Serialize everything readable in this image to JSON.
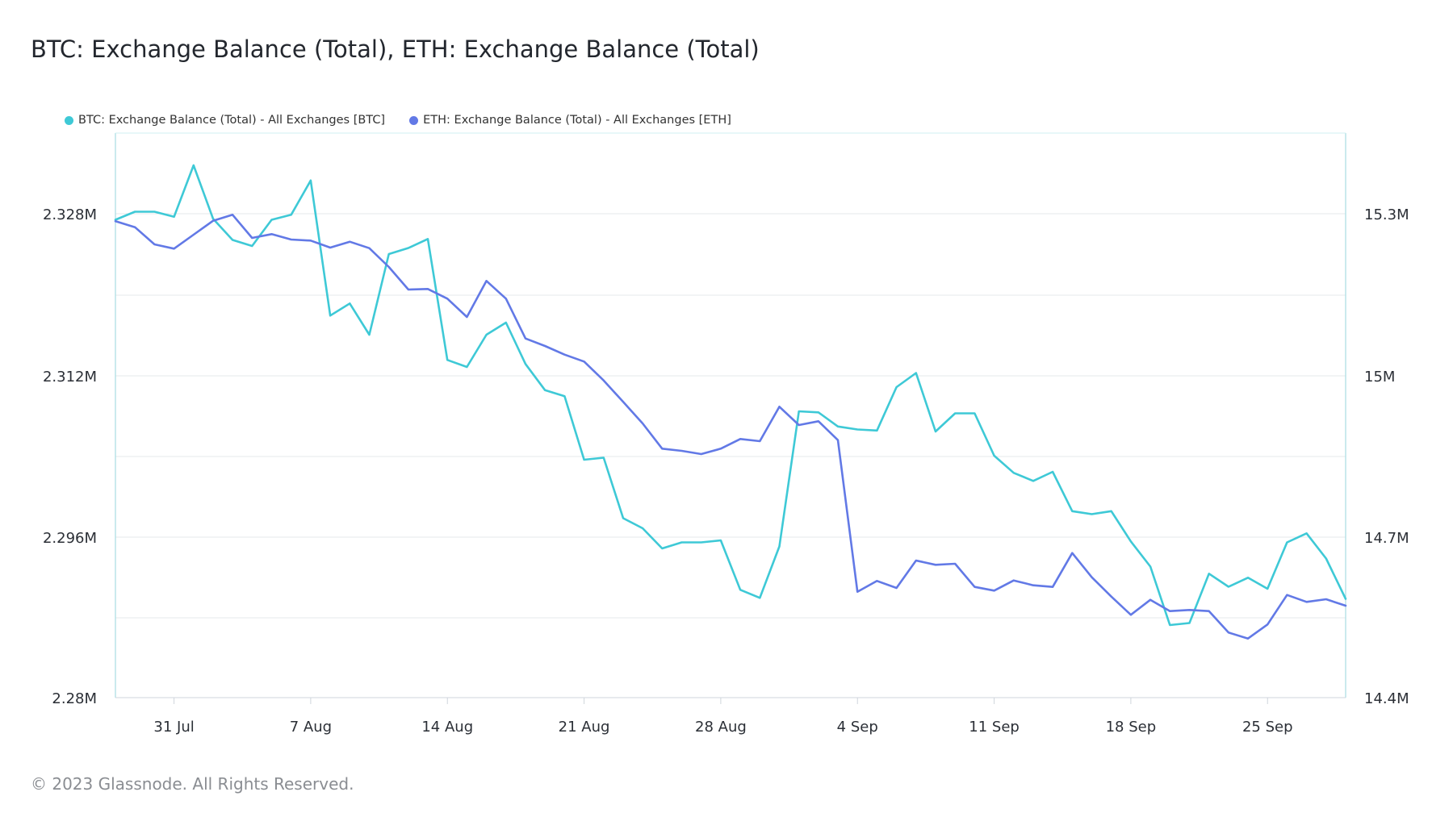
{
  "chart_data": {
    "type": "line",
    "title": "BTC: Exchange Balance (Total), ETH: Exchange Balance (Total)",
    "x_ticks": [
      "31 Jul",
      "7 Aug",
      "14 Aug",
      "21 Aug",
      "28 Aug",
      "4 Sep",
      "11 Sep",
      "18 Sep",
      "25 Sep"
    ],
    "x": [
      "2023-07-28",
      "2023-07-29",
      "2023-07-30",
      "2023-07-31",
      "2023-08-01",
      "2023-08-02",
      "2023-08-03",
      "2023-08-04",
      "2023-08-05",
      "2023-08-06",
      "2023-08-07",
      "2023-08-08",
      "2023-08-09",
      "2023-08-10",
      "2023-08-11",
      "2023-08-12",
      "2023-08-13",
      "2023-08-14",
      "2023-08-15",
      "2023-08-16",
      "2023-08-17",
      "2023-08-18",
      "2023-08-19",
      "2023-08-20",
      "2023-08-21",
      "2023-08-22",
      "2023-08-23",
      "2023-08-24",
      "2023-08-25",
      "2023-08-26",
      "2023-08-27",
      "2023-08-28",
      "2023-08-29",
      "2023-08-30",
      "2023-08-31",
      "2023-09-01",
      "2023-09-02",
      "2023-09-03",
      "2023-09-04",
      "2023-09-05",
      "2023-09-06",
      "2023-09-07",
      "2023-09-08",
      "2023-09-09",
      "2023-09-10",
      "2023-09-11",
      "2023-09-12",
      "2023-09-13",
      "2023-09-14",
      "2023-09-15",
      "2023-09-16",
      "2023-09-17",
      "2023-09-18",
      "2023-09-19",
      "2023-09-20",
      "2023-09-21",
      "2023-09-22",
      "2023-09-23",
      "2023-09-24",
      "2023-09-25",
      "2023-09-26",
      "2023-09-27",
      "2023-09-28",
      "2023-09-29"
    ],
    "y_left": {
      "ticks": [
        "2.328M",
        "2.312M",
        "2.296M",
        "2.28M"
      ],
      "range": [
        2280000,
        2336000
      ]
    },
    "y_right": {
      "ticks": [
        "15.3M",
        "15M",
        "14.7M",
        "14.4M"
      ],
      "range": [
        14400000,
        15450000
      ]
    },
    "series": [
      {
        "name": "BTC: Exchange Balance (Total) - All Exchanges [BTC]",
        "axis": "left",
        "color": "#3ec9d6",
        "values": [
          2327400,
          2328200,
          2328200,
          2327700,
          2332800,
          2327500,
          2325400,
          2324800,
          2327400,
          2327900,
          2331300,
          2317900,
          2319100,
          2316000,
          2324000,
          2324600,
          2325500,
          2313500,
          2312800,
          2316000,
          2317200,
          2313100,
          2310500,
          2309900,
          2303600,
          2303800,
          2297800,
          2296800,
          2294800,
          2295400,
          2295400,
          2295600,
          2290700,
          2289900,
          2295000,
          2308400,
          2308300,
          2306900,
          2306600,
          2306500,
          2310800,
          2312200,
          2306400,
          2308200,
          2308200,
          2304000,
          2302300,
          2301500,
          2302400,
          2298500,
          2298200,
          2298500,
          2295500,
          2293000,
          2287200,
          2287400,
          2292300,
          2291000,
          2291900,
          2290800,
          2295400,
          2296300,
          2293800,
          2289800
        ]
      },
      {
        "name": "ETH: Exchange Balance (Total) - All Exchanges [ETH]",
        "axis": "right",
        "color": "#6279e6",
        "values": [
          15286000,
          15275000,
          15243000,
          15235000,
          15261000,
          15287000,
          15298000,
          15255000,
          15262000,
          15252000,
          15250000,
          15237000,
          15248000,
          15236000,
          15201000,
          15159000,
          15160000,
          15142000,
          15108000,
          15175000,
          15142000,
          15068000,
          15054000,
          15038000,
          15025000,
          14990000,
          14950000,
          14910000,
          14863000,
          14859000,
          14853000,
          14863000,
          14881000,
          14877000,
          14941000,
          14907000,
          14914000,
          14879000,
          14597000,
          14617000,
          14604000,
          14655000,
          14647000,
          14649000,
          14606000,
          14599000,
          14618000,
          14609000,
          14606000,
          14669000,
          14624000,
          14588000,
          14554000,
          14582000,
          14561000,
          14563000,
          14561000,
          14521000,
          14510000,
          14536000,
          14591000,
          14578000,
          14583000,
          14571000
        ]
      }
    ],
    "grid": true,
    "legend": "top-left"
  },
  "footer": "© 2023 Glassnode. All Rights Reserved."
}
